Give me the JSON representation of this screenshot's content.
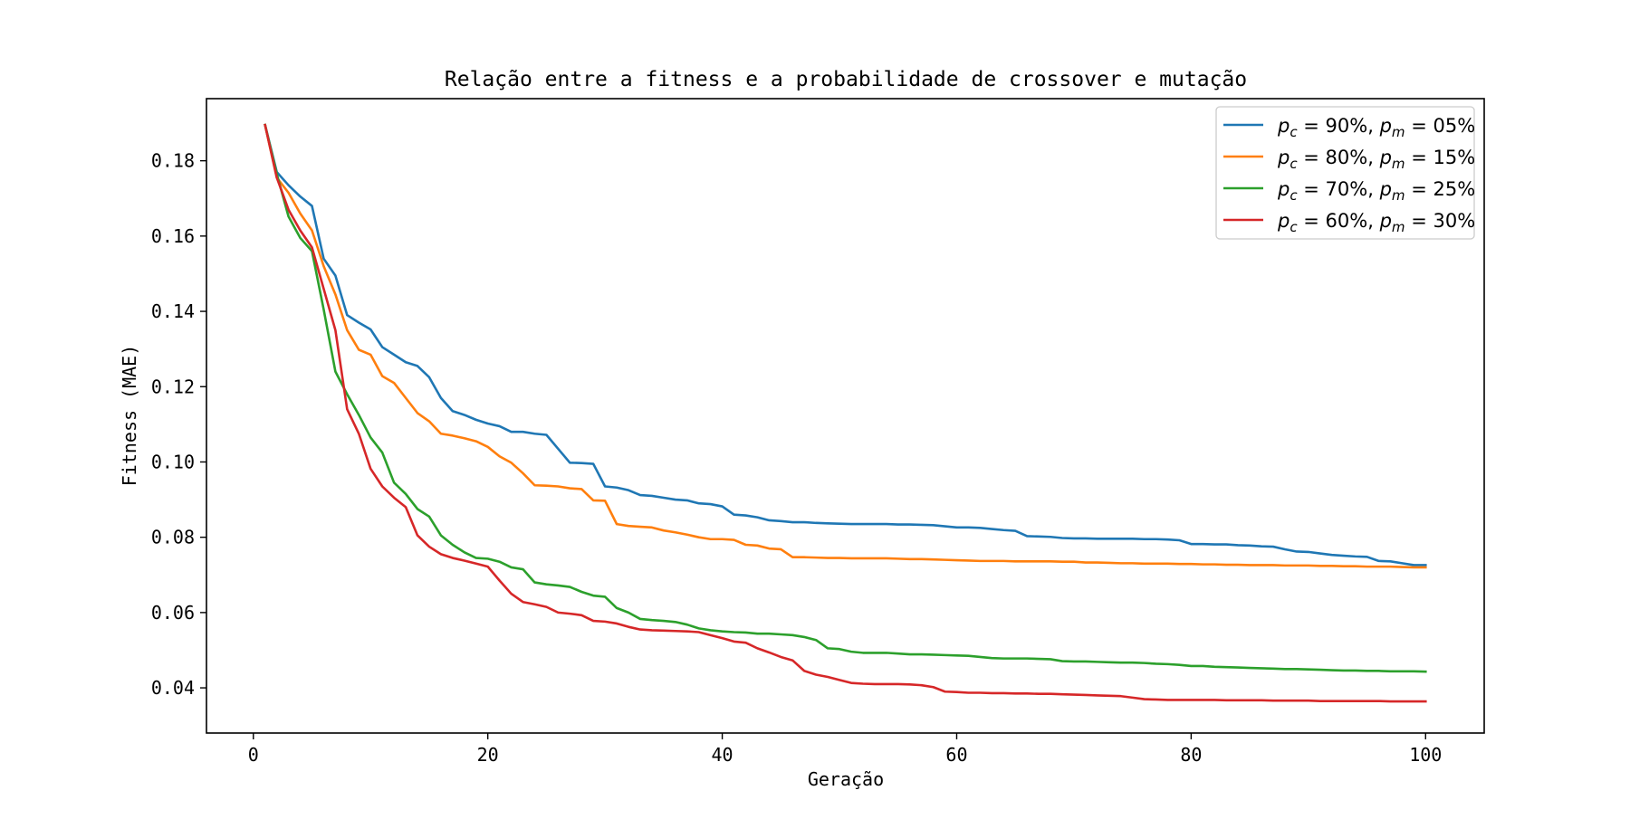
{
  "chart_data": {
    "type": "line",
    "title": "Relação entre a fitness e a probabilidade de crossover e mutação",
    "xlabel": "Geração",
    "ylabel": "Fitness (MAE)",
    "xlim": [
      -4,
      105
    ],
    "ylim": [
      0.028,
      0.1965
    ],
    "xticks": [
      0,
      20,
      40,
      60,
      80,
      100
    ],
    "yticks": [
      0.04,
      0.06,
      0.08,
      0.1,
      0.12,
      0.14,
      0.16,
      0.18
    ],
    "grid": false,
    "legend_position": "top-right",
    "x": [
      1,
      2,
      3,
      4,
      5,
      6,
      7,
      8,
      9,
      10,
      11,
      12,
      13,
      14,
      15,
      16,
      17,
      18,
      19,
      20,
      21,
      22,
      23,
      24,
      25,
      26,
      27,
      28,
      29,
      30,
      31,
      32,
      33,
      34,
      35,
      36,
      37,
      38,
      39,
      40,
      41,
      42,
      43,
      44,
      45,
      46,
      47,
      48,
      49,
      50,
      51,
      52,
      53,
      54,
      55,
      56,
      57,
      58,
      59,
      60,
      61,
      62,
      63,
      64,
      65,
      66,
      67,
      68,
      69,
      70,
      71,
      72,
      73,
      74,
      75,
      76,
      77,
      78,
      79,
      80,
      81,
      82,
      83,
      84,
      85,
      86,
      87,
      88,
      89,
      90,
      91,
      92,
      93,
      94,
      95,
      96,
      97,
      98,
      99,
      100
    ],
    "series": [
      {
        "name": "p_c = 90%, p_m = 05%",
        "legend": {
          "a": "p",
          "as": "c",
          "b": " = 90%, ",
          "c": "p",
          "cs": "m",
          "d": " = 05%"
        },
        "color": "#1f77b4",
        "values": [
          0.1895,
          0.177,
          0.1735,
          0.1705,
          0.168,
          0.154,
          0.1495,
          0.139,
          0.137,
          0.1352,
          0.1305,
          0.1285,
          0.1265,
          0.1255,
          0.1225,
          0.117,
          0.1135,
          0.1125,
          0.1112,
          0.1102,
          0.1095,
          0.108,
          0.108,
          0.1075,
          0.1072,
          0.1035,
          0.0998,
          0.0997,
          0.0995,
          0.0935,
          0.0932,
          0.0925,
          0.0912,
          0.091,
          0.0905,
          0.09,
          0.0898,
          0.089,
          0.0888,
          0.0882,
          0.086,
          0.0858,
          0.0853,
          0.0845,
          0.0843,
          0.084,
          0.084,
          0.0838,
          0.0837,
          0.0836,
          0.0835,
          0.0835,
          0.0835,
          0.0835,
          0.0834,
          0.0834,
          0.0833,
          0.0832,
          0.0829,
          0.0826,
          0.0826,
          0.0825,
          0.0822,
          0.0819,
          0.0817,
          0.0803,
          0.0802,
          0.0801,
          0.0798,
          0.0797,
          0.0797,
          0.0796,
          0.0796,
          0.0796,
          0.0796,
          0.0795,
          0.0795,
          0.0794,
          0.0792,
          0.0782,
          0.0782,
          0.0781,
          0.0781,
          0.0779,
          0.0778,
          0.0776,
          0.0775,
          0.0768,
          0.0762,
          0.0761,
          0.0757,
          0.0753,
          0.0751,
          0.0749,
          0.0748,
          0.0737,
          0.0736,
          0.0731,
          0.0726,
          0.0726
        ]
      },
      {
        "name": "p_c = 80%, p_m = 15%",
        "legend": {
          "a": "p",
          "as": "c",
          "b": " = 80%, ",
          "c": "p",
          "cs": "m",
          "d": " = 15%"
        },
        "color": "#ff7f0e",
        "values": [
          0.1895,
          0.1755,
          0.1715,
          0.166,
          0.1615,
          0.152,
          0.1445,
          0.135,
          0.1298,
          0.1285,
          0.1228,
          0.121,
          0.117,
          0.113,
          0.1108,
          0.1075,
          0.107,
          0.1063,
          0.1055,
          0.104,
          0.1015,
          0.0998,
          0.097,
          0.0938,
          0.0937,
          0.0935,
          0.093,
          0.0928,
          0.0898,
          0.0897,
          0.0835,
          0.083,
          0.0828,
          0.0826,
          0.0818,
          0.0813,
          0.0807,
          0.08,
          0.0795,
          0.0795,
          0.0793,
          0.078,
          0.0778,
          0.077,
          0.0768,
          0.0747,
          0.0747,
          0.0746,
          0.0745,
          0.0745,
          0.0744,
          0.0744,
          0.0744,
          0.0744,
          0.0743,
          0.0742,
          0.0742,
          0.0741,
          0.074,
          0.0739,
          0.0738,
          0.0737,
          0.0737,
          0.0737,
          0.0736,
          0.0736,
          0.0736,
          0.0736,
          0.0735,
          0.0735,
          0.0733,
          0.0733,
          0.0732,
          0.0731,
          0.0731,
          0.073,
          0.073,
          0.073,
          0.0729,
          0.0729,
          0.0728,
          0.0728,
          0.0727,
          0.0727,
          0.0726,
          0.0726,
          0.0726,
          0.0725,
          0.0725,
          0.0725,
          0.0724,
          0.0724,
          0.0723,
          0.0723,
          0.0722,
          0.0722,
          0.0722,
          0.0721,
          0.072,
          0.072
        ]
      },
      {
        "name": "p_c = 70%, p_m = 25%",
        "legend": {
          "a": "p",
          "as": "c",
          "b": " = 70%, ",
          "c": "p",
          "cs": "m",
          "d": " = 25%"
        },
        "color": "#2ca02c",
        "values": [
          0.1895,
          0.1765,
          0.1652,
          0.1595,
          0.156,
          0.1405,
          0.124,
          0.118,
          0.1125,
          0.1065,
          0.1025,
          0.0945,
          0.0915,
          0.0875,
          0.0855,
          0.0805,
          0.078,
          0.076,
          0.0745,
          0.0743,
          0.0735,
          0.072,
          0.0715,
          0.068,
          0.0675,
          0.0672,
          0.0668,
          0.0655,
          0.0645,
          0.0642,
          0.0612,
          0.06,
          0.0583,
          0.058,
          0.0578,
          0.0575,
          0.0568,
          0.0558,
          0.0553,
          0.055,
          0.0548,
          0.0547,
          0.0544,
          0.0544,
          0.0542,
          0.054,
          0.0535,
          0.0527,
          0.0505,
          0.0503,
          0.0496,
          0.0493,
          0.0493,
          0.0493,
          0.0491,
          0.0489,
          0.0489,
          0.0488,
          0.0487,
          0.0486,
          0.0485,
          0.0482,
          0.0479,
          0.0478,
          0.0478,
          0.0478,
          0.0477,
          0.0476,
          0.0471,
          0.047,
          0.047,
          0.0469,
          0.0468,
          0.0467,
          0.0467,
          0.0466,
          0.0464,
          0.0463,
          0.0461,
          0.0458,
          0.0458,
          0.0456,
          0.0455,
          0.0454,
          0.0453,
          0.0452,
          0.0451,
          0.045,
          0.045,
          0.0449,
          0.0448,
          0.0447,
          0.0446,
          0.0446,
          0.0445,
          0.0445,
          0.0444,
          0.0444,
          0.0444,
          0.0443
        ]
      },
      {
        "name": "p_c = 60%, p_m = 30%",
        "legend": {
          "a": "p",
          "as": "c",
          "b": " = 60%, ",
          "c": "p",
          "cs": "m",
          "d": " = 30%"
        },
        "color": "#d62728",
        "values": [
          0.1895,
          0.1755,
          0.167,
          0.1615,
          0.157,
          0.146,
          0.135,
          0.114,
          0.1075,
          0.0982,
          0.0935,
          0.0905,
          0.088,
          0.0805,
          0.0775,
          0.0755,
          0.0745,
          0.0738,
          0.073,
          0.0722,
          0.0685,
          0.065,
          0.0628,
          0.0622,
          0.0615,
          0.06,
          0.0597,
          0.0593,
          0.0578,
          0.0576,
          0.0571,
          0.0562,
          0.0555,
          0.0553,
          0.0552,
          0.0551,
          0.055,
          0.0548,
          0.054,
          0.0532,
          0.0523,
          0.052,
          0.0505,
          0.0494,
          0.0482,
          0.0473,
          0.0445,
          0.0435,
          0.0429,
          0.0421,
          0.0413,
          0.0411,
          0.041,
          0.041,
          0.041,
          0.0409,
          0.0407,
          0.0402,
          0.039,
          0.0389,
          0.0387,
          0.0387,
          0.0386,
          0.0386,
          0.0385,
          0.0385,
          0.0384,
          0.0384,
          0.0383,
          0.0382,
          0.0381,
          0.038,
          0.0379,
          0.0378,
          0.0374,
          0.037,
          0.0369,
          0.0368,
          0.0368,
          0.0368,
          0.0368,
          0.0368,
          0.0367,
          0.0367,
          0.0367,
          0.0367,
          0.0366,
          0.0366,
          0.0366,
          0.0366,
          0.0365,
          0.0365,
          0.0365,
          0.0365,
          0.0365,
          0.0365,
          0.0364,
          0.0364,
          0.0364,
          0.0364
        ]
      }
    ]
  }
}
